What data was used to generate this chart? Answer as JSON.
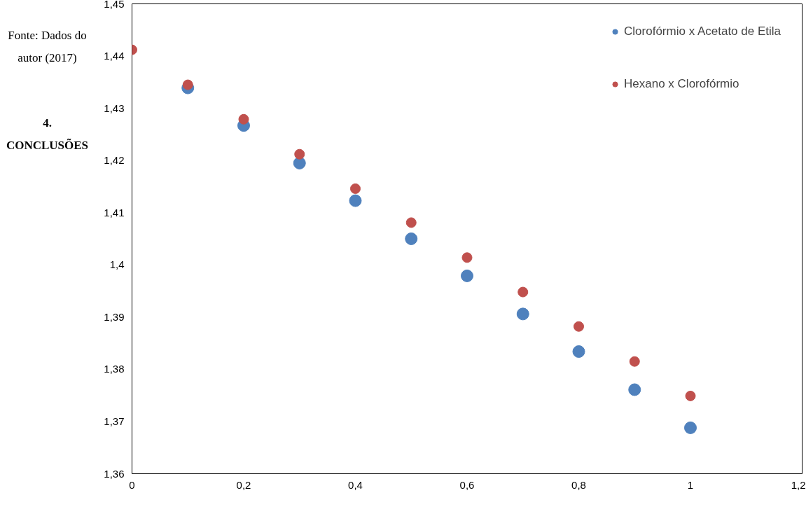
{
  "chart_data": {
    "type": "scatter",
    "annotations": [
      "Fonte: Dados do autor (2017)",
      "4. CONCLUSÕES"
    ],
    "x": [
      0,
      0.1,
      0.2,
      0.3,
      0.4,
      0.5,
      0.6,
      0.7,
      0.8,
      0.9,
      1
    ],
    "series": [
      {
        "name": "Clorofórmio x Acetato de Etila",
        "color": "#4f81bd",
        "values": [
          null,
          1.4339,
          1.4267,
          1.4195,
          1.4123,
          1.405,
          1.3979,
          1.3906,
          1.3834,
          1.3761,
          1.3688
        ]
      },
      {
        "name": "Hexano x Clorofórmio",
        "color": "#c0504d",
        "values": [
          1.4412,
          1.4345,
          1.4279,
          1.4212,
          1.4146,
          1.4081,
          1.4014,
          1.3948,
          1.3882,
          1.3815,
          1.3749
        ]
      }
    ],
    "xlim": [
      0,
      1.2
    ],
    "ylim": [
      1.36,
      1.45
    ],
    "xticks": [
      0,
      {
        "value": 0.2,
        "label": "0,2"
      },
      {
        "value": 0.4,
        "label": "0,4"
      },
      {
        "value": 0.6,
        "label": "0,6"
      },
      {
        "value": 0.8,
        "label": "0,8"
      },
      1,
      {
        "value": 1.2,
        "label": "1,2"
      }
    ],
    "yticks": [
      {
        "value": 1.36,
        "label": "1,36"
      },
      {
        "value": 1.37,
        "label": "1,37"
      },
      {
        "value": 1.38,
        "label": "1,38"
      },
      {
        "value": 1.39,
        "label": "1,39"
      },
      {
        "value": 1.4,
        "label": "1,4"
      },
      {
        "value": 1.41,
        "label": "1,41"
      },
      {
        "value": 1.42,
        "label": "1,42"
      },
      {
        "value": 1.43,
        "label": "1,43"
      },
      {
        "value": 1.44,
        "label": "1,44"
      },
      {
        "value": 1.45,
        "label": "1,45"
      }
    ],
    "grid": false,
    "legend": "top right",
    "marker": "circle"
  }
}
